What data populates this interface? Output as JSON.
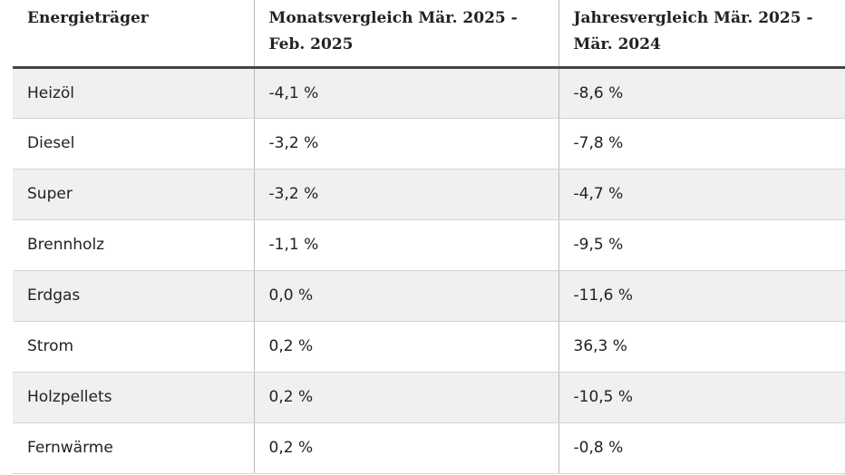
{
  "table": {
    "headers": [
      "Energieträger",
      "Monatsvergleich Mär. 2025 - Feb. 2025",
      "Jahresvergleich Mär. 2025 - Mär. 2024"
    ],
    "rows": [
      [
        "Heizöl",
        "-4,1 %",
        "-8,6 %"
      ],
      [
        "Diesel",
        "-3,2 %",
        "-7,8 %"
      ],
      [
        "Super",
        "-3,2 %",
        "-4,7 %"
      ],
      [
        "Brennholz",
        "-1,1 %",
        "-9,5 %"
      ],
      [
        "Erdgas",
        "0,0 %",
        "-11,6 %"
      ],
      [
        "Strom",
        "0,2 %",
        "36,3 %"
      ],
      [
        "Holzpellets",
        "0,2 %",
        "-10,5 %"
      ],
      [
        "Fernwärme",
        "0,2 %",
        "-0,8 %"
      ]
    ]
  }
}
